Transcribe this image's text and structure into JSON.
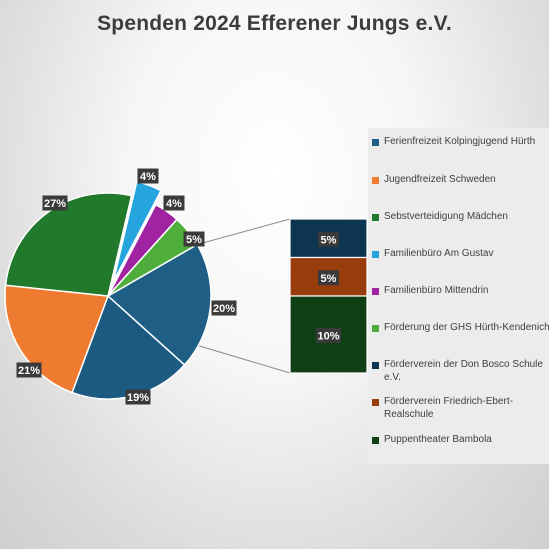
{
  "chart_data": {
    "type": "pie",
    "title": "Spenden 2024 Efferener Jungs e.V.",
    "subtype": "pie-of-pie",
    "slices": [
      {
        "name": "Ferienfreizeit Kolpingjugend Hürth",
        "value": 20,
        "label": "20%",
        "color": "#1f5f86",
        "group": "main"
      },
      {
        "name": "Jugendfreizeit Schweden",
        "value": 19,
        "label": "19%",
        "color": "#1d5a82",
        "group": "main"
      },
      {
        "name": "",
        "value": 21,
        "label": "21%",
        "color": "#ee7b30",
        "group": "main"
      },
      {
        "name": "Sebstverteidigung Mädchen",
        "value": 27,
        "label": "27%",
        "color": "#217a2c",
        "group": "main"
      },
      {
        "name": "Familienbüro Am Gustav",
        "value": 4,
        "label": "4%",
        "color": "#26a4dd",
        "group": "main",
        "exploded": true
      },
      {
        "name": "Familienbüro Mittendrin",
        "value": 4,
        "label": "4%",
        "color": "#a023a2",
        "group": "main"
      },
      {
        "name": "Förderung der GHS Hürth-Kendenich",
        "value": 5,
        "label": "5%",
        "color": "#4fad3c",
        "group": "main"
      }
    ],
    "secondary": [
      {
        "name": "Förderverein der Don Bosco Schule e.V.",
        "value": 5,
        "label": "5%",
        "color": "#0d3451"
      },
      {
        "name": "Förderverein Friedrich-Ebert-Realschule",
        "value": 5,
        "label": "5%",
        "color": "#993d0c"
      },
      {
        "name": "Puppentheater Bambola",
        "value": 10,
        "label": "10%",
        "color": "#0f3f14"
      }
    ],
    "legend": {
      "placement": "right",
      "items": [
        {
          "label": "Ferienfreizeit Kolpingjugend Hürth",
          "color": "#1f5f86"
        },
        {
          "label": "Jugendfreizeit Schweden",
          "color": "#ee7b30"
        },
        {
          "label": "Sebstverteidigung Mädchen",
          "color": "#217a2c"
        },
        {
          "label": "Familienbüro Am Gustav",
          "color": "#26a4dd"
        },
        {
          "label": "Familienbüro Mittendrin",
          "color": "#a023a2"
        },
        {
          "label": "Förderung der GHS Hürth-Kendenich",
          "color": "#4fad3c"
        },
        {
          "label": "Förderverein der Don Bosco Schule e.V.",
          "color": "#0d3451"
        },
        {
          "label": "Förderverein Friedrich-Ebert-Realschule",
          "color": "#993d0c"
        },
        {
          "label": "Puppentheater Bambola",
          "color": "#0f3f14"
        }
      ]
    }
  }
}
